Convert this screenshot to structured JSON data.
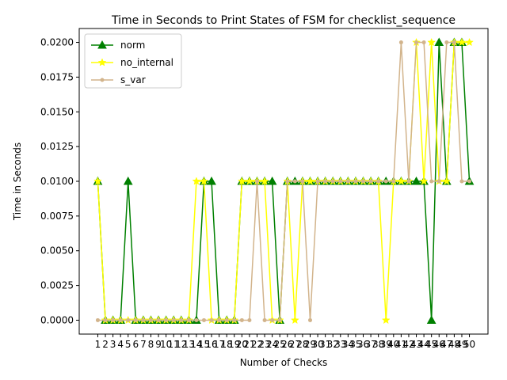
{
  "chart_data": {
    "type": "line",
    "title": "Time in Seconds to Print States of FSM for checklist_sequence",
    "xlabel": "Number of Checks",
    "ylabel": "Time in Seconds",
    "x": [
      1,
      2,
      3,
      4,
      5,
      6,
      7,
      8,
      9,
      10,
      11,
      12,
      13,
      14,
      15,
      16,
      17,
      18,
      19,
      20,
      21,
      22,
      23,
      24,
      25,
      26,
      27,
      28,
      29,
      30,
      31,
      32,
      33,
      34,
      35,
      36,
      37,
      38,
      39,
      40,
      41,
      42,
      43,
      44,
      45,
      46,
      47,
      48,
      49,
      50
    ],
    "xlim": [
      -1.45,
      52.45
    ],
    "ylim": [
      -0.001,
      0.021
    ],
    "yticks": [
      0.0,
      0.0025,
      0.005,
      0.0075,
      0.01,
      0.0125,
      0.015,
      0.0175,
      0.02
    ],
    "ytick_labels": [
      "0.0000",
      "0.0025",
      "0.0050",
      "0.0075",
      "0.0100",
      "0.0125",
      "0.0150",
      "0.0175",
      "0.0200"
    ],
    "legend_position": "upper-left",
    "series": [
      {
        "name": "norm",
        "color": "#008000",
        "marker": "triangle",
        "values": [
          0.01,
          0,
          0,
          0,
          0.01,
          0,
          0,
          0,
          0,
          0,
          0,
          0,
          0,
          0,
          0.01,
          0.01,
          0,
          0,
          0,
          0.01,
          0.01,
          0.01,
          0.01,
          0.01,
          0,
          0.01,
          0.01,
          0.01,
          0.01,
          0.01,
          0.01,
          0.01,
          0.01,
          0.01,
          0.01,
          0.01,
          0.01,
          0.01,
          0.01,
          0.01,
          0.01,
          0.01,
          0.01,
          0.01,
          0,
          0.02,
          0.01,
          0.02,
          0.02,
          0.01
        ]
      },
      {
        "name": "no_internal",
        "color": "#ffff00",
        "marker": "star",
        "values": [
          0.01,
          0,
          0,
          0,
          0,
          0,
          0,
          0,
          0,
          0,
          0,
          0,
          0,
          0.01,
          0.01,
          0,
          0,
          0,
          0,
          0.01,
          0.01,
          0.01,
          0.01,
          0,
          0,
          0.01,
          0,
          0.01,
          0.01,
          0.01,
          0.01,
          0.01,
          0.01,
          0.01,
          0.01,
          0.01,
          0.01,
          0.01,
          0,
          0.01,
          0.01,
          0.01,
          0.02,
          0.01,
          0.02,
          0.01,
          0.01,
          0.02,
          0.02,
          0.02
        ]
      },
      {
        "name": "s_var",
        "color": "#d2b48c",
        "marker": "circle",
        "values": [
          0,
          0,
          0,
          0,
          0,
          0,
          0,
          0,
          0,
          0,
          0,
          0,
          0,
          0,
          0,
          0,
          0,
          0,
          0,
          0,
          0,
          0.01,
          0,
          0,
          0,
          0.01,
          0.01,
          0.01,
          0,
          0.01,
          0.01,
          0.01,
          0.01,
          0.01,
          0.01,
          0.01,
          0.01,
          0.01,
          0.01,
          0.01,
          0.02,
          0.01,
          0.02,
          0.02,
          0.01,
          0.01,
          0.02,
          0.02,
          0.01,
          0.01
        ]
      }
    ]
  }
}
